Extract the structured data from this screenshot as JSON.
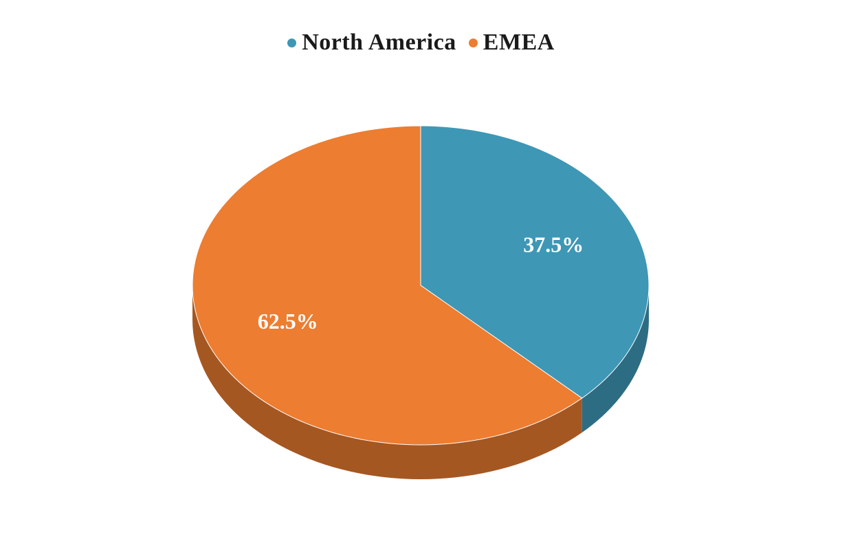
{
  "chart_data": {
    "type": "pie",
    "style": "3d",
    "categories": [
      "North America",
      "EMEA"
    ],
    "values": [
      37.5,
      62.5
    ],
    "data_labels": [
      "37.5%",
      "62.5%"
    ],
    "colors": [
      "#3e97b5",
      "#ed7d31"
    ],
    "side_colors": [
      "#2d6d83",
      "#a55722"
    ],
    "legend_position": "top",
    "title": ""
  }
}
